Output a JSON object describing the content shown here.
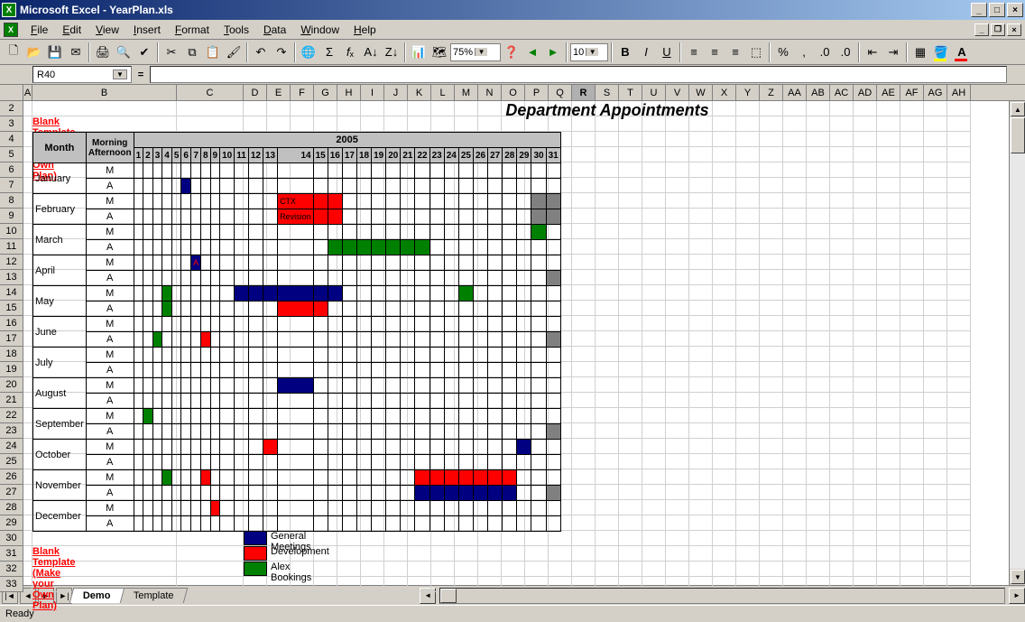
{
  "window": {
    "app_name": "Microsoft Excel",
    "doc_name": "YearPlan.xls",
    "title": "Microsoft Excel - YearPlan.xls"
  },
  "menus": [
    "File",
    "Edit",
    "View",
    "Insert",
    "Format",
    "Tools",
    "Data",
    "Window",
    "Help"
  ],
  "toolbar": {
    "zoom": "75%",
    "font_size": "10"
  },
  "namebox": "R40",
  "formula": "",
  "columns_letters": [
    "A",
    "B",
    "C",
    "D",
    "E",
    "F",
    "G",
    "H",
    "I",
    "J",
    "K",
    "L",
    "M",
    "N",
    "O",
    "P",
    "Q",
    "R",
    "S",
    "T",
    "U",
    "V",
    "W",
    "X",
    "Y",
    "Z",
    "AA",
    "AB",
    "AC",
    "AD",
    "AE",
    "AF",
    "AG",
    "AH"
  ],
  "col_widths": {
    "A": 10,
    "B": 160,
    "C": 74,
    "day": 26
  },
  "row_start": 2,
  "row_end": 33,
  "title": "Department Appointments",
  "link_text": "Blank Template (Make your Own Plan)",
  "header": {
    "month": "Month",
    "ma": "Morning\nAfternoon",
    "year": "2005"
  },
  "days": [
    "1",
    "2",
    "3",
    "4",
    "5",
    "6",
    "7",
    "8",
    "9",
    "10",
    "11",
    "12",
    "13",
    "14",
    "15",
    "16",
    "17",
    "18",
    "19",
    "20",
    "21",
    "22",
    "23",
    "24",
    "25",
    "26",
    "27",
    "28",
    "29",
    "30",
    "31"
  ],
  "months": [
    "January",
    "February",
    "March",
    "April",
    "May",
    "June",
    "July",
    "August",
    "September",
    "October",
    "November",
    "December"
  ],
  "slot_labels": {
    "m": "M",
    "a": "A"
  },
  "colors": {
    "blue": "#000080",
    "red": "#ff0000",
    "green": "#008000",
    "grey": "#808080",
    "hdr_grey": "#c0c0c0"
  },
  "legend": [
    {
      "color": "#000080",
      "label": "General Meetings"
    },
    {
      "color": "#ff0000",
      "label": "Development"
    },
    {
      "color": "#008000",
      "label": "Alex Bookings"
    }
  ],
  "fills": [
    {
      "month": "January",
      "slot": "A",
      "days": [
        6
      ],
      "color": "#000080"
    },
    {
      "month": "February",
      "slot": "M",
      "days": [
        14,
        15,
        16
      ],
      "color": "#ff0000",
      "text": "CTX"
    },
    {
      "month": "February",
      "slot": "A",
      "days": [
        14,
        15,
        16
      ],
      "color": "#ff0000",
      "text": "Revision"
    },
    {
      "month": "February",
      "slot": "M",
      "days": [
        30,
        31
      ],
      "color": "#808080"
    },
    {
      "month": "February",
      "slot": "A",
      "days": [
        30,
        31
      ],
      "color": "#808080"
    },
    {
      "month": "March",
      "slot": "M",
      "days": [
        30
      ],
      "color": "#008000"
    },
    {
      "month": "March",
      "slot": "A",
      "days": [
        16,
        17,
        18,
        19,
        20,
        21,
        22
      ],
      "color": "#008000"
    },
    {
      "month": "April",
      "slot": "M",
      "days": [
        7
      ],
      "color": "#000080",
      "text": "A",
      "textcolor": "#ff0000"
    },
    {
      "month": "April",
      "slot": "A",
      "days": [
        31
      ],
      "color": "#808080"
    },
    {
      "month": "May",
      "slot": "M",
      "days": [
        4
      ],
      "color": "#008000"
    },
    {
      "month": "May",
      "slot": "M",
      "days": [
        11,
        12,
        13,
        14,
        15,
        16
      ],
      "color": "#000080"
    },
    {
      "month": "May",
      "slot": "M",
      "days": [
        25
      ],
      "color": "#008000"
    },
    {
      "month": "May",
      "slot": "A",
      "days": [
        4
      ],
      "color": "#008000"
    },
    {
      "month": "May",
      "slot": "A",
      "days": [
        14,
        15
      ],
      "color": "#ff0000"
    },
    {
      "month": "June",
      "slot": "A",
      "days": [
        3
      ],
      "color": "#008000"
    },
    {
      "month": "June",
      "slot": "A",
      "days": [
        8
      ],
      "color": "#ff0000"
    },
    {
      "month": "June",
      "slot": "A",
      "days": [
        31
      ],
      "color": "#808080"
    },
    {
      "month": "August",
      "slot": "M",
      "days": [
        14
      ],
      "color": "#000080"
    },
    {
      "month": "September",
      "slot": "M",
      "days": [
        2
      ],
      "color": "#008000"
    },
    {
      "month": "September",
      "slot": "A",
      "days": [
        31
      ],
      "color": "#808080"
    },
    {
      "month": "October",
      "slot": "M",
      "days": [
        13
      ],
      "color": "#ff0000"
    },
    {
      "month": "October",
      "slot": "M",
      "days": [
        29
      ],
      "color": "#000080"
    },
    {
      "month": "November",
      "slot": "M",
      "days": [
        4
      ],
      "color": "#008000",
      "text": "",
      "textcolor": "#ff0000"
    },
    {
      "month": "November",
      "slot": "M",
      "days": [
        8
      ],
      "color": "#ff0000"
    },
    {
      "month": "November",
      "slot": "M",
      "days": [
        22,
        23,
        24,
        25,
        26,
        27,
        28
      ],
      "color": "#ff0000"
    },
    {
      "month": "November",
      "slot": "A",
      "days": [
        22,
        23,
        24,
        25,
        26,
        27,
        28
      ],
      "color": "#000080"
    },
    {
      "month": "November",
      "slot": "A",
      "days": [
        31
      ],
      "color": "#808080"
    },
    {
      "month": "December",
      "slot": "M",
      "days": [
        9
      ],
      "color": "#ff0000"
    }
  ],
  "tabs": [
    {
      "name": "Demo",
      "active": true
    },
    {
      "name": "Template",
      "active": false
    }
  ],
  "status": "Ready",
  "selected_col": "R"
}
